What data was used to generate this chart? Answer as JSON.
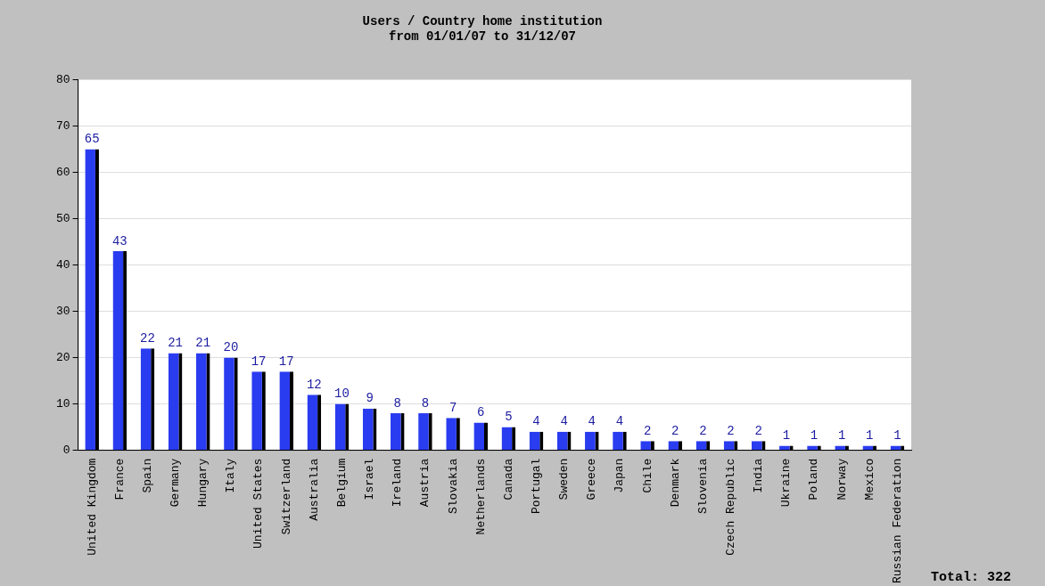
{
  "chart_data": {
    "type": "bar",
    "title": "Users / Country home institution",
    "subtitle": "from 01/01/07 to 31/12/07",
    "categories": [
      "United Kingdom",
      "France",
      "Spain",
      "Germany",
      "Hungary",
      "Italy",
      "United States",
      "Switzerland",
      "Australia",
      "Belgium",
      "Israel",
      "Ireland",
      "Austria",
      "Slovakia",
      "Netherlands",
      "Canada",
      "Portugal",
      "Sweden",
      "Greece",
      "Japan",
      "Chile",
      "Denmark",
      "Slovenia",
      "Czech Republic",
      "India",
      "Ukraine",
      "Poland",
      "Norway",
      "Mexico",
      "Russian Federation"
    ],
    "values": [
      65,
      43,
      22,
      21,
      21,
      20,
      17,
      17,
      12,
      10,
      9,
      8,
      8,
      7,
      6,
      5,
      4,
      4,
      4,
      4,
      2,
      2,
      2,
      2,
      2,
      1,
      1,
      1,
      1,
      1
    ],
    "color": "#2a3cf0",
    "ylim": [
      0,
      80
    ],
    "yticks": [
      0,
      10,
      20,
      30,
      40,
      50,
      60,
      70,
      80
    ],
    "grid": "y",
    "data_labels": true,
    "legend": false,
    "annotations": [
      "Total: 322"
    ]
  }
}
